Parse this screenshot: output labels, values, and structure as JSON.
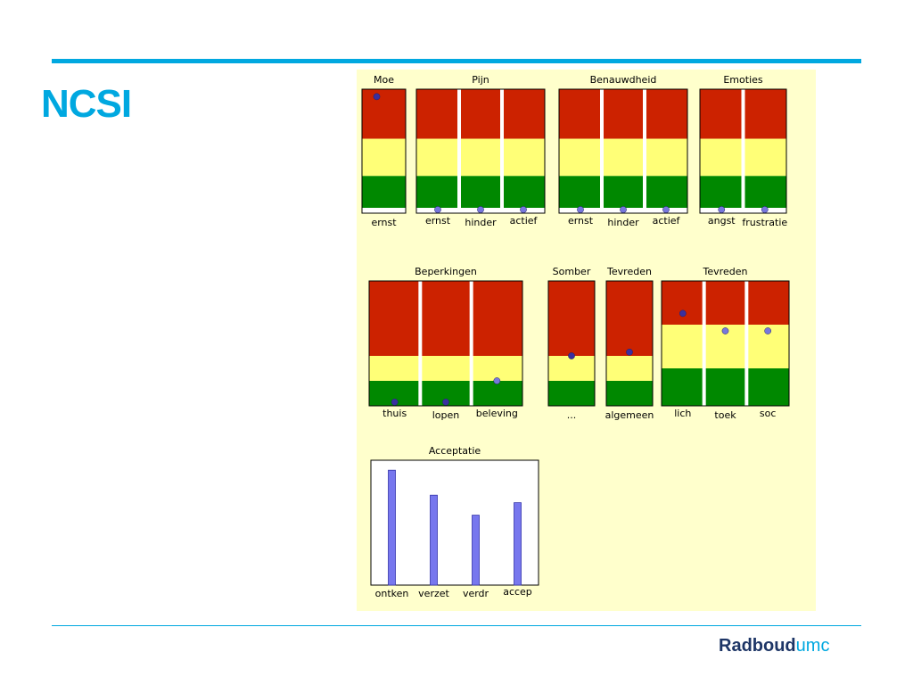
{
  "slide": {
    "title": "NCSI",
    "brand_part1": "Radboud",
    "brand_part2": "umc"
  },
  "colors": {
    "accent": "#00a8e0",
    "brand_dark": "#1d3566",
    "panel_bg": "#ffffcc",
    "zone_red": "#cc2200",
    "zone_yellow": "#ffff77",
    "zone_green": "#008800",
    "dot_dark": "#3a2fa0",
    "dot_light": "#7777dd",
    "bar": "#7777ee"
  },
  "chart_data": [
    {
      "type": "scatter",
      "title": "Moe",
      "categories": [
        "ernst"
      ],
      "values": [
        0.94
      ],
      "zones": [
        0.3,
        0.6
      ]
    },
    {
      "type": "scatter",
      "title": "Pijn",
      "categories": [
        "ernst",
        "hinder",
        "actief"
      ],
      "values": [
        0.02,
        0.02,
        0.02
      ],
      "zones": [
        0.3,
        0.6
      ]
    },
    {
      "type": "scatter",
      "title": "Benauwdheid",
      "categories": [
        "ernst",
        "hinder",
        "actief"
      ],
      "values": [
        0.02,
        0.02,
        0.02
      ],
      "zones": [
        0.3,
        0.6
      ]
    },
    {
      "type": "scatter",
      "title": "Emoties",
      "categories": [
        "angst",
        "frustratie"
      ],
      "values": [
        0.02,
        0.02
      ],
      "zones": [
        0.3,
        0.6
      ]
    },
    {
      "type": "scatter",
      "title": "Beperkingen",
      "categories": [
        "thuis",
        "lopen",
        "beleving"
      ],
      "values": [
        0.03,
        0.03,
        0.2
      ],
      "zones": [
        0.2,
        0.4
      ]
    },
    {
      "type": "scatter",
      "title": "Somber",
      "categories": [
        "..."
      ],
      "values": [
        0.4
      ],
      "zones": [
        0.2,
        0.4
      ]
    },
    {
      "type": "scatter",
      "title": "Tevreden",
      "categories": [
        "algemeen"
      ],
      "values": [
        0.43
      ],
      "zones": [
        0.2,
        0.4
      ]
    },
    {
      "type": "scatter",
      "title": "Tevreden",
      "categories": [
        "lich",
        "toek",
        "soc"
      ],
      "values": [
        0.74,
        0.6,
        0.6
      ],
      "zones": [
        0.3,
        0.65
      ]
    },
    {
      "type": "bar",
      "title": "Acceptatie",
      "categories": [
        "ontken",
        "verzet",
        "verdr",
        "accep"
      ],
      "values": [
        0.92,
        0.72,
        0.56,
        0.66
      ],
      "ylim": [
        0,
        1
      ]
    }
  ]
}
